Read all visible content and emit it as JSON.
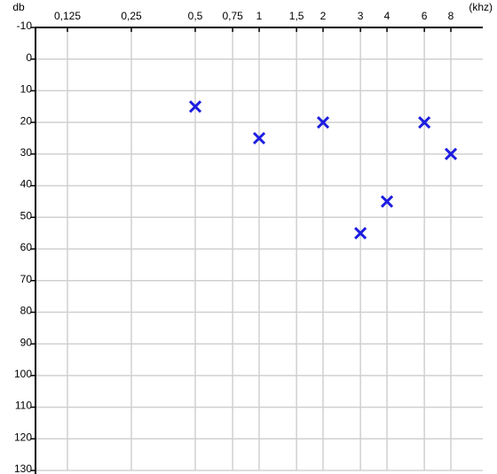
{
  "chart_data": {
    "type": "line",
    "x_label": "(khz)",
    "y_label": "db",
    "x": [
      0.5,
      1,
      2,
      3,
      4,
      6,
      8
    ],
    "values": [
      15,
      25,
      20,
      55,
      45,
      20,
      30
    ],
    "color": "#1c1ce0",
    "line_style": "dashed",
    "marker": "x",
    "x_log_scale": true,
    "y_inverted": true,
    "grid": true,
    "xlim": [
      0.0884,
      11.31
    ],
    "xticks": [
      {
        "value": 0.125,
        "label": "0,125"
      },
      {
        "value": 0.25,
        "label": "0,25"
      },
      {
        "value": 0.5,
        "label": "0,5"
      },
      {
        "value": 0.75,
        "label": "0,75"
      },
      1,
      {
        "value": 1.5,
        "label": "1,5"
      },
      2,
      3,
      4,
      6,
      8
    ],
    "ylim": [
      -10,
      130
    ],
    "yticks": [
      -10,
      0,
      10,
      20,
      30,
      40,
      50,
      60,
      70,
      80,
      90,
      100,
      110,
      120,
      130
    ]
  }
}
